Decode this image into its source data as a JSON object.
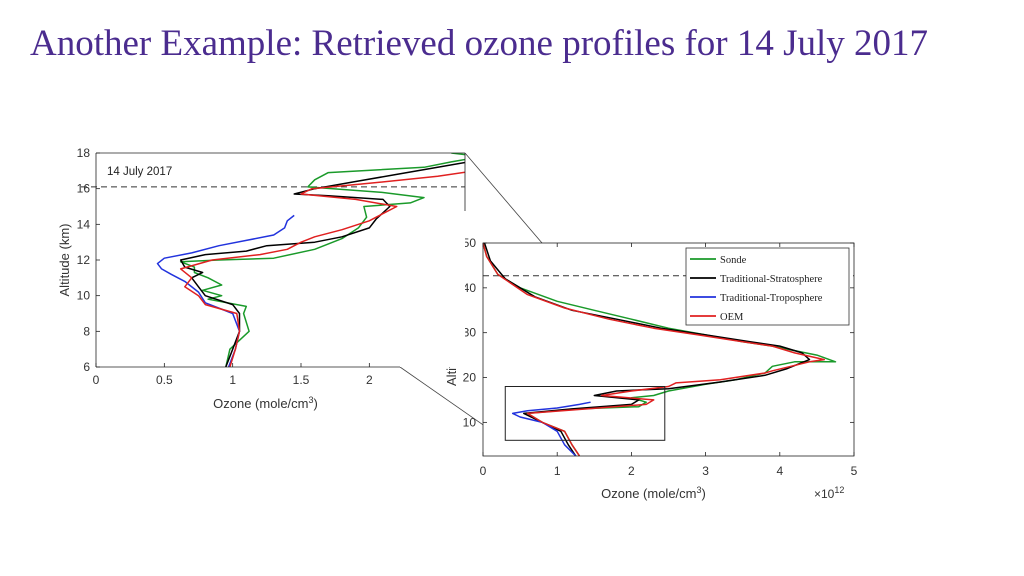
{
  "slide": {
    "title": "Another Example: Retrieved ozone profiles for 14 July 2017",
    "title_color": "#4b2c8f"
  },
  "chart_data": [
    {
      "type": "line",
      "id": "zoom",
      "annotation": "14 July 2017",
      "xlabel": "Ozone (mole/cm",
      "xlabel_sup": "3",
      "xlabel_close": ")",
      "ylabel": "Altitude (km)",
      "xlim": [
        0,
        2.7
      ],
      "ylim": [
        6,
        18
      ],
      "xticks": [
        0,
        0.5,
        1,
        1.5,
        2
      ],
      "xtick_labels": [
        "0",
        "0.5",
        "1",
        "1.5",
        "2"
      ],
      "yticks": [
        6,
        8,
        10,
        12,
        14,
        16,
        18
      ],
      "ytick_labels": [
        "6",
        "8",
        "10",
        "12",
        "14",
        "16",
        "18"
      ],
      "reference_line_altitude": 16.1,
      "series": [
        {
          "name": "Sonde",
          "color": "#1a9a2a",
          "x": [
            0.95,
            0.98,
            1.12,
            1.08,
            1.1,
            0.82,
            0.92,
            0.78,
            0.92,
            0.82,
            0.72,
            0.72,
            0.62,
            0.9,
            1.3,
            1.6,
            1.8,
            1.92,
            1.98,
            1.96,
            2.3,
            2.4,
            2.08,
            1.55,
            1.6,
            1.7,
            2.4,
            2.6,
            2.82,
            2.6
          ],
          "y": [
            6.0,
            7.0,
            8.0,
            9.0,
            9.4,
            9.8,
            10.0,
            10.3,
            10.6,
            11.0,
            11.3,
            11.6,
            11.9,
            12.0,
            12.1,
            12.6,
            13.2,
            13.8,
            14.4,
            15.0,
            15.2,
            15.5,
            15.8,
            16.1,
            16.5,
            16.9,
            17.2,
            17.5,
            17.8,
            18.0
          ]
        },
        {
          "name": "Traditional-Stratosphere",
          "color": "#000000",
          "x": [
            0.95,
            1.0,
            1.05,
            1.05,
            1.0,
            0.8,
            0.75,
            0.7,
            0.78,
            0.65,
            0.62,
            0.8,
            1.1,
            1.25,
            1.6,
            1.8,
            2.0,
            2.05,
            2.15,
            2.1,
            1.7,
            1.45,
            1.6,
            1.9,
            2.2,
            2.5,
            2.8,
            2.7
          ],
          "y": [
            6.0,
            7.0,
            8.0,
            9.0,
            9.5,
            10.0,
            10.5,
            11.0,
            11.3,
            11.6,
            12.0,
            12.3,
            12.5,
            12.8,
            13.0,
            13.3,
            13.8,
            14.3,
            15.0,
            15.4,
            15.6,
            15.7,
            16.0,
            16.4,
            16.8,
            17.2,
            17.6,
            18.0
          ]
        },
        {
          "name": "Traditional-Troposphere",
          "color": "#2233dd",
          "x": [
            0.97,
            1.02,
            1.05,
            1.0,
            0.8,
            0.75,
            0.65,
            0.55,
            0.48,
            0.45,
            0.5,
            0.7,
            0.9,
            1.1,
            1.3,
            1.38,
            1.4,
            1.45
          ],
          "y": [
            6.0,
            7.0,
            8.0,
            9.0,
            9.6,
            10.2,
            10.8,
            11.2,
            11.5,
            11.8,
            12.1,
            12.4,
            12.8,
            13.1,
            13.4,
            13.8,
            14.2,
            14.5
          ]
        },
        {
          "name": "OEM",
          "color": "#e02020",
          "x": [
            0.98,
            1.02,
            1.05,
            1.03,
            0.8,
            0.75,
            0.65,
            0.7,
            0.62,
            0.85,
            1.2,
            1.4,
            1.5,
            1.6,
            1.8,
            2.0,
            2.1,
            2.2,
            1.9,
            1.5,
            1.58,
            2.0,
            2.5,
            2.95
          ],
          "y": [
            6.0,
            7.0,
            8.0,
            9.0,
            9.5,
            10.0,
            10.5,
            11.0,
            11.5,
            12.0,
            12.3,
            12.6,
            13.0,
            13.3,
            13.7,
            14.2,
            14.6,
            15.0,
            15.4,
            15.7,
            16.0,
            16.3,
            16.7,
            17.2
          ]
        }
      ]
    },
    {
      "type": "line",
      "id": "main",
      "xlabel": "Ozone (mole/cm",
      "xlabel_sup": "3",
      "xlabel_close": ")",
      "ylabel": "Altitude (km)",
      "x_multiplier": "×10",
      "x_multiplier_exp": "12",
      "xlim": [
        0,
        5
      ],
      "ylim": [
        2.5,
        50
      ],
      "xticks": [
        0,
        1,
        2,
        3,
        4,
        5
      ],
      "xtick_labels": [
        "0",
        "1",
        "2",
        "3",
        "4",
        "5"
      ],
      "yticks": [
        10,
        20,
        30,
        40,
        50
      ],
      "ytick_labels": [
        "10",
        "20",
        "30",
        "40",
        "50"
      ],
      "reference_line_altitude": 42.7,
      "zoom_box": {
        "x": [
          0.3,
          2.45
        ],
        "y": [
          6,
          18
        ]
      },
      "legend": {
        "position": "top-right",
        "entries": [
          "Sonde",
          "Traditional-Stratosphere",
          "Traditional-Troposphere",
          "OEM"
        ]
      },
      "series": [
        {
          "name": "Sonde",
          "color": "#1a9a2a",
          "x": [
            1.3,
            1.2,
            1.1,
            0.8,
            0.6,
            1.3,
            2.1,
            2.2,
            2.0,
            2.3,
            2.5,
            3.0,
            3.4,
            3.8,
            3.9,
            4.2,
            4.75,
            4.5,
            4.2,
            3.9,
            3.5,
            3.0,
            2.5,
            2.0,
            1.5,
            1.0,
            0.5,
            0.2,
            0.05,
            0.0
          ],
          "y": [
            2.5,
            5.0,
            8.0,
            10.0,
            12.0,
            13.0,
            13.5,
            14.5,
            15.5,
            16.0,
            17.0,
            18.5,
            19.5,
            21.0,
            22.5,
            23.5,
            23.5,
            25.0,
            26.0,
            27.0,
            28.0,
            29.5,
            31.0,
            33.0,
            35.0,
            37.0,
            40.0,
            43.0,
            47.0,
            50.0
          ]
        },
        {
          "name": "Traditional-Stratosphere",
          "color": "#000000",
          "x": [
            1.25,
            1.15,
            1.05,
            0.8,
            0.55,
            1.2,
            2.0,
            2.1,
            1.5,
            1.8,
            2.5,
            3.2,
            3.8,
            4.1,
            4.4,
            4.3,
            4.0,
            3.6,
            3.0,
            2.4,
            1.8,
            1.2,
            0.7,
            0.3,
            0.1,
            0.02
          ],
          "y": [
            2.5,
            5.0,
            8.0,
            10.0,
            12.0,
            13.0,
            14.0,
            15.0,
            16.0,
            17.0,
            17.5,
            19.0,
            20.5,
            22.0,
            24.0,
            25.5,
            27.0,
            28.0,
            29.5,
            31.0,
            33.0,
            35.0,
            38.0,
            42.0,
            46.0,
            50.0
          ]
        },
        {
          "name": "Traditional-Troposphere",
          "color": "#2233dd",
          "x": [
            1.25,
            1.1,
            1.0,
            0.8,
            0.5,
            0.4,
            0.6,
            1.0,
            1.3,
            1.45
          ],
          "y": [
            2.5,
            5.0,
            8.0,
            10.0,
            11.2,
            12.0,
            12.6,
            13.2,
            14.0,
            14.5
          ]
        },
        {
          "name": "OEM",
          "color": "#e02020",
          "x": [
            1.3,
            1.2,
            1.1,
            0.8,
            0.6,
            1.4,
            2.2,
            2.3,
            1.6,
            2.0,
            2.5,
            2.6,
            3.2,
            3.8,
            3.9,
            4.4,
            4.6,
            4.2,
            3.9,
            3.5,
            2.9,
            2.3,
            1.7,
            1.1,
            0.6,
            0.2,
            0.05,
            0.0
          ],
          "y": [
            2.5,
            5.0,
            8.0,
            10.0,
            12.0,
            13.0,
            14.0,
            15.0,
            16.0,
            17.0,
            18.0,
            18.8,
            19.5,
            21.0,
            21.5,
            23.5,
            24.0,
            25.5,
            27.0,
            28.0,
            29.5,
            31.0,
            33.0,
            35.5,
            38.5,
            43.0,
            47.0,
            50.0
          ]
        }
      ]
    }
  ]
}
